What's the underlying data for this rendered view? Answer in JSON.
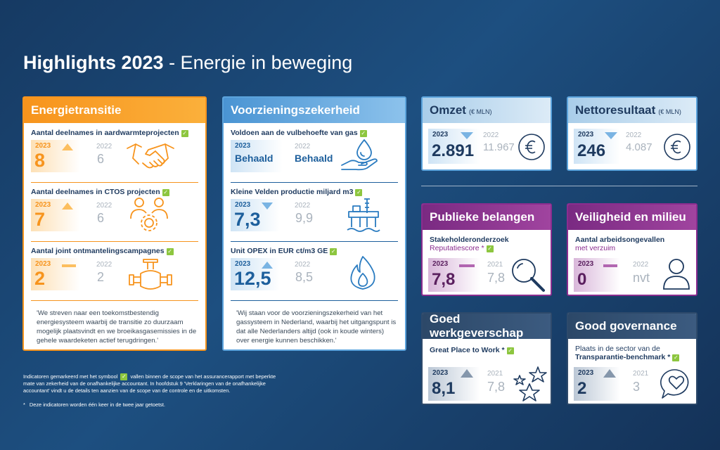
{
  "title": {
    "bold": "Highlights 2023",
    "rest": "- Energie in beweging"
  },
  "colors": {
    "orange": "#f7941d",
    "lightblue": "#5ba3dc",
    "purple": "#8b2d8f",
    "navy": "#2e4a6b",
    "check": "#8dc63f"
  },
  "energietransitie": {
    "header": "Energietransitie",
    "metrics": [
      {
        "label": "Aantal deelnames in aardwarmteprojecten",
        "year_now": "2023",
        "value_now": "8",
        "year_prev": "2022",
        "value_prev": "6",
        "trend": "up",
        "icon": "handshake-icon"
      },
      {
        "label": "Aantal deelnames in CTOS projecten",
        "year_now": "2023",
        "value_now": "7",
        "year_prev": "2022",
        "value_prev": "6",
        "trend": "up",
        "icon": "people-gear-icon"
      },
      {
        "label": "Aantal joint ontmantelingscampagnes",
        "year_now": "2023",
        "value_now": "2",
        "year_prev": "2022",
        "value_prev": "2",
        "trend": "equal",
        "icon": "pipe-valve-icon"
      }
    ],
    "quote": "'We streven naar een toekomstbestendig energiesysteem waarbij de transitie zo duurzaam mogelijk plaatsvindt en we broeikasgasemissies in de gehele waardeketen actief terugdringen.'"
  },
  "voorziening": {
    "header": "Voorzieningszekerheid",
    "metrics": [
      {
        "label": "Voldoen aan de vulbehoefte van gas",
        "year_now": "2023",
        "value_now": "Behaald",
        "year_prev": "2022",
        "value_prev": "Behaald",
        "trend": "none",
        "icon": "hand-drop-icon"
      },
      {
        "label": "Kleine Velden productie miljard m3",
        "year_now": "2023",
        "value_now": "7,3",
        "year_prev": "2022",
        "value_prev": "9,9",
        "trend": "down",
        "icon": "oil-platform-icon"
      },
      {
        "label": "Unit OPEX in EUR ct/m3 GE",
        "year_now": "2023",
        "value_now": "12,5",
        "year_prev": "2022",
        "value_prev": "8,5",
        "trend": "up",
        "icon": "flame-icon"
      }
    ],
    "quote": "'Wij staan voor de voorzieningszekerheid van het gassysteem in Nederland, waarbij het uitgangspunt is dat alle Nederlanders altijd (ook in koude winters) over energie kunnen beschikken.'"
  },
  "omzet": {
    "header": "Omzet",
    "unit": "(€ MLN)",
    "year_now": "2023",
    "value_now": "2.891",
    "year_prev": "2022",
    "value_prev": "11.967",
    "trend": "down",
    "icon": "euro-icon"
  },
  "nettoresultaat": {
    "header": "Nettoresultaat",
    "unit": "(€ MLN)",
    "year_now": "2023",
    "value_now": "246",
    "year_prev": "2022",
    "value_prev": "4.087",
    "trend": "down",
    "icon": "euro-icon"
  },
  "publieke": {
    "header": "Publieke belangen",
    "label_bold": "Stakeholderonderzoek",
    "label_plain": "Reputatiescore *",
    "year_now": "2023",
    "value_now": "7,8",
    "year_prev": "2021",
    "value_prev": "7,8",
    "trend": "equal",
    "icon": "magnifier-icon"
  },
  "veiligheid": {
    "header": "Veiligheid en milieu",
    "label_bold": "Aantal arbeidsongevallen",
    "label_plain": "met verzuim",
    "year_now": "2023",
    "value_now": "0",
    "year_prev": "2022",
    "value_prev": "nvt",
    "trend": "equal",
    "icon": "person-icon"
  },
  "werkgever": {
    "header": "Goed werkgeverschap",
    "label_bold": "Great Place to Work *",
    "year_now": "2023",
    "value_now": "8,1",
    "year_prev": "2021",
    "value_prev": "7,8",
    "trend": "up",
    "icon": "stars-icon"
  },
  "governance": {
    "header": "Good governance",
    "label_plain": "Plaats in de sector van de",
    "label_bold": "Transparantie-benchmark *",
    "year_now": "2023",
    "value_now": "2",
    "year_prev": "2021",
    "value_prev": "3",
    "trend": "up",
    "icon": "heart-bubble-icon"
  },
  "footnotes": {
    "line1_a": "Indicatoren gemarkeerd met het symbool",
    "line1_b": "vallen binnen de scope van het assurancerapport met beperkte",
    "line2": "mate van zekerheid van de onafhankelijke accountant. In hoofdstuk 9 'Verklaringen van de onafhankelijke",
    "line3": "accountant' vindt u de details ten aanzien van de scope van de controle en de uitkomsten.",
    "star_symbol": "*",
    "star_text": "Deze indicatoren worden één keer in de twee jaar getoetst."
  }
}
